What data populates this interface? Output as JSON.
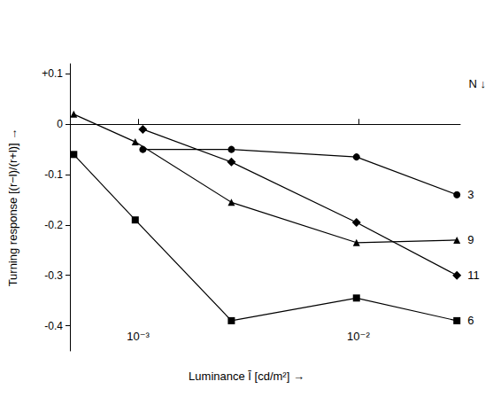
{
  "chart_data": {
    "type": "line",
    "xlabel": "Luminance Ī [cd/m²] →",
    "ylabel": "Turning response [(r−l)/(r+l)] →",
    "annotations": [
      "N ↓"
    ],
    "log": "x",
    "grid": false,
    "xlim": [
      0.00049,
      0.029
    ],
    "xticks": [
      {
        "value": 0.001,
        "label": "10⁻³"
      },
      {
        "value": 0.01,
        "label": "10⁻²"
      }
    ],
    "ylim": [
      -0.45,
      0.12
    ],
    "yticks": [
      {
        "value": 0.1,
        "label": "+0.1"
      },
      0,
      -0.1,
      -0.2,
      -0.3,
      -0.4
    ],
    "series": [
      {
        "name": "3",
        "color": "#000000",
        "marker": "circle",
        "x": [
          0.00105,
          0.00265,
          0.0098,
          0.028
        ],
        "values": [
          -0.05,
          -0.05,
          -0.065,
          -0.14
        ]
      },
      {
        "name": "9",
        "color": "#000000",
        "marker": "triangle",
        "x": [
          0.00051,
          0.00097,
          0.00265,
          0.0098,
          0.028
        ],
        "values": [
          0.02,
          -0.035,
          -0.155,
          -0.235,
          -0.23
        ]
      },
      {
        "name": "11",
        "color": "#000000",
        "marker": "diamond",
        "x": [
          0.00105,
          0.00265,
          0.0098,
          0.028
        ],
        "values": [
          -0.01,
          -0.075,
          -0.195,
          -0.3
        ]
      },
      {
        "name": "6",
        "color": "#000000",
        "marker": "square",
        "x": [
          0.00051,
          0.00097,
          0.00265,
          0.0098,
          0.028
        ],
        "values": [
          -0.06,
          -0.19,
          -0.39,
          -0.345,
          -0.39
        ]
      }
    ]
  }
}
